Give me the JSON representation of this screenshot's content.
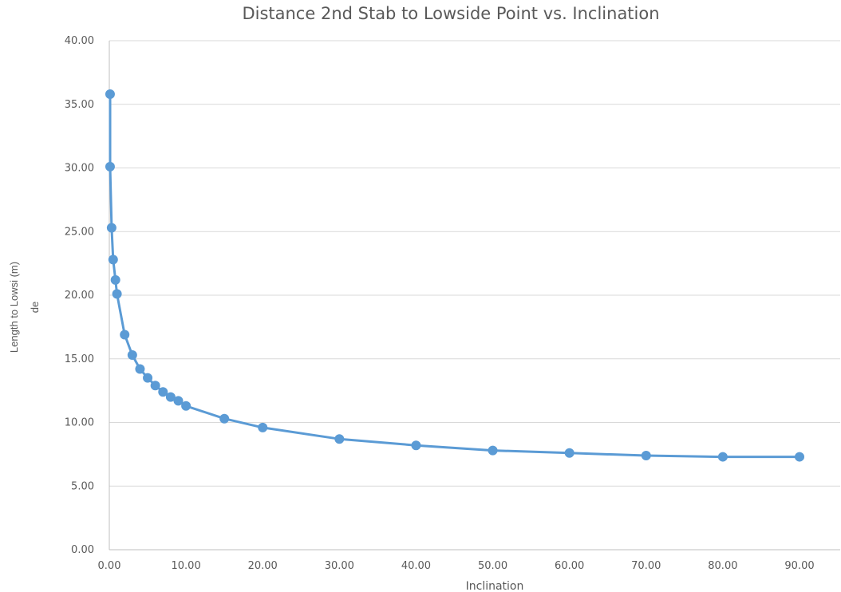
{
  "chart_data": {
    "type": "line",
    "title": "Distance 2nd Stab to Lowside Point vs. Inclination",
    "xlabel": "Inclination",
    "ylabel_lines": [
      "Length to Lowsi (m)",
      "de"
    ],
    "xlim": [
      0,
      90
    ],
    "ylim": [
      0,
      40
    ],
    "x_ticks": [
      0,
      10,
      20,
      30,
      40,
      50,
      60,
      70,
      80,
      90
    ],
    "y_ticks": [
      0,
      5,
      10,
      15,
      20,
      25,
      30,
      35,
      40
    ],
    "x_tick_labels": [
      "0.00",
      "10.00",
      "20.00",
      "30.00",
      "40.00",
      "50.00",
      "60.00",
      "70.00",
      "80.00",
      "90.00"
    ],
    "y_tick_labels": [
      "0.00",
      "5.00",
      "10.00",
      "15.00",
      "20.00",
      "25.00",
      "30.00",
      "35.00",
      "40.00"
    ],
    "grid": {
      "horizontal": true,
      "vertical": false
    },
    "legend": "none",
    "series_color": "#5B9BD5",
    "series": [
      {
        "points": [
          {
            "x": 0.1,
            "y": 35.8
          },
          {
            "x": 0.1,
            "y": 30.1
          },
          {
            "x": 0.3,
            "y": 25.3
          },
          {
            "x": 0.5,
            "y": 22.8
          },
          {
            "x": 0.8,
            "y": 21.2
          },
          {
            "x": 1.0,
            "y": 20.1
          },
          {
            "x": 2.0,
            "y": 16.9
          },
          {
            "x": 3.0,
            "y": 15.3
          },
          {
            "x": 4.0,
            "y": 14.2
          },
          {
            "x": 5.0,
            "y": 13.5
          },
          {
            "x": 6.0,
            "y": 12.9
          },
          {
            "x": 7.0,
            "y": 12.4
          },
          {
            "x": 8.0,
            "y": 12.0
          },
          {
            "x": 9.0,
            "y": 11.7
          },
          {
            "x": 10.0,
            "y": 11.3
          },
          {
            "x": 15.0,
            "y": 10.3
          },
          {
            "x": 20.0,
            "y": 9.6
          },
          {
            "x": 30.0,
            "y": 8.7
          },
          {
            "x": 40.0,
            "y": 8.2
          },
          {
            "x": 50.0,
            "y": 7.8
          },
          {
            "x": 60.0,
            "y": 7.6
          },
          {
            "x": 70.0,
            "y": 7.4
          },
          {
            "x": 80.0,
            "y": 7.3
          },
          {
            "x": 90.0,
            "y": 7.3
          }
        ]
      }
    ]
  }
}
